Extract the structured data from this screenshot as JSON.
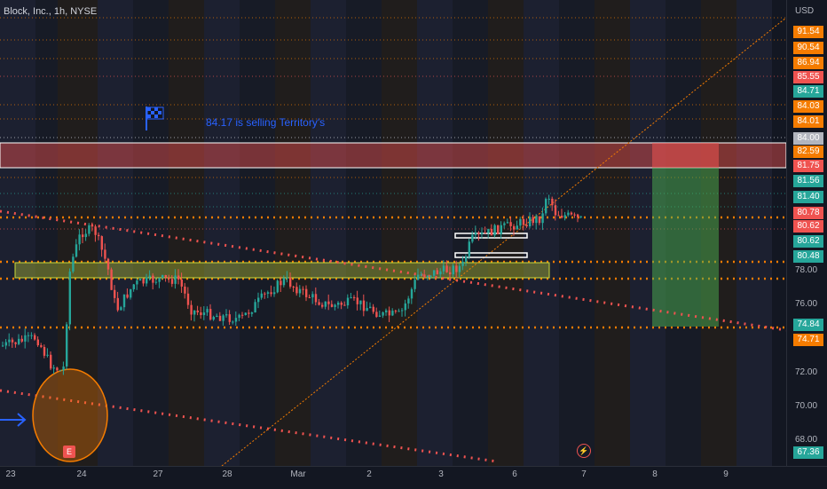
{
  "header": {
    "title": "Block, Inc., 1h, NYSE"
  },
  "annotation": {
    "note": "84.17 is selling Territory's"
  },
  "yaxis": {
    "currency": "USD",
    "price_tags": [
      {
        "label": "91.54",
        "color": "#f57c00"
      },
      {
        "label": "90.54",
        "color": "#f57c00"
      },
      {
        "label": "86.94",
        "color": "#f57c00"
      },
      {
        "label": "85.55",
        "color": "#ef5350"
      },
      {
        "label": "84.71",
        "color": "#26a69a"
      },
      {
        "label": "84.03",
        "color": "#f57c00"
      },
      {
        "label": "84.01",
        "color": "#f57c00"
      },
      {
        "label": "84.00",
        "color": "#b2b5be"
      },
      {
        "label": "82.59",
        "color": "#f57c00"
      },
      {
        "label": "81.75",
        "color": "#ef5350"
      },
      {
        "label": "81.56",
        "color": "#26a69a"
      },
      {
        "label": "81.40",
        "color": "#26a69a"
      },
      {
        "label": "80.78",
        "color": "#ef5350"
      },
      {
        "label": "80.62",
        "color": "#ef5350"
      },
      {
        "label": "80.62",
        "color": "#26a69a"
      },
      {
        "label": "80.48",
        "color": "#26a69a"
      },
      {
        "label": "74.84",
        "color": "#26a69a"
      },
      {
        "label": "74.71",
        "color": "#f57c00"
      },
      {
        "label": "67.36",
        "color": "#26a69a"
      }
    ],
    "ticks": [
      "78.00",
      "76.00",
      "72.00",
      "70.00",
      "68.00"
    ]
  },
  "xaxis": {
    "ticks": [
      "23",
      "24",
      "27",
      "28",
      "Mar",
      "2",
      "3",
      "6",
      "7",
      "8",
      "9"
    ]
  },
  "markers": {
    "earnings": "E",
    "dividend": "⚡"
  }
}
